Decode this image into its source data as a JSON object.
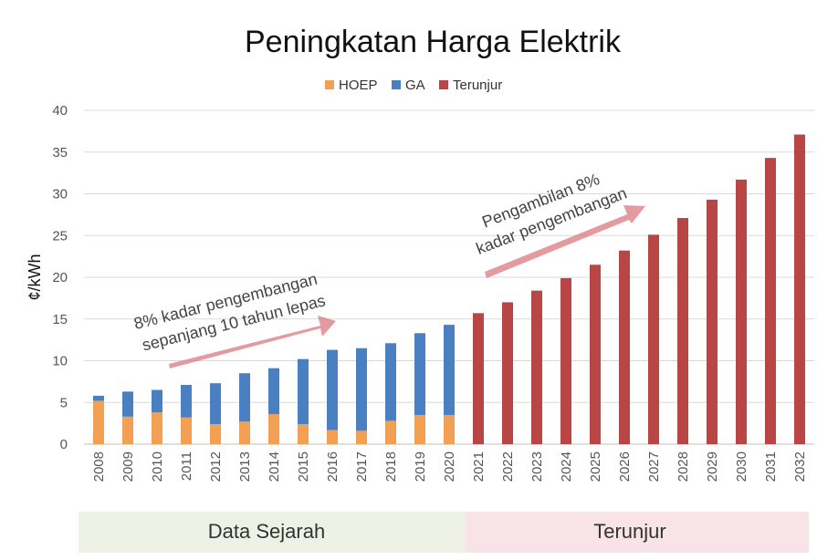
{
  "chart_data": {
    "type": "bar",
    "stacked": true,
    "title": "Peningkatan Harga Elektrik",
    "xlabel": "",
    "ylabel": "¢/kWh",
    "ylim": [
      0,
      40
    ],
    "yticks": [
      0,
      5,
      10,
      15,
      20,
      25,
      30,
      35,
      40
    ],
    "grid": true,
    "legend_position": "top",
    "categories": [
      "2008",
      "2009",
      "2010",
      "2011",
      "2012",
      "2013",
      "2014",
      "2015",
      "2016",
      "2017",
      "2018",
      "2019",
      "2020",
      "2021",
      "2022",
      "2023",
      "2024",
      "2025",
      "2026",
      "2027",
      "2028",
      "2029",
      "2030",
      "2031",
      "2032"
    ],
    "series": [
      {
        "name": "HOEP",
        "color": "#F4A054",
        "values": [
          5.2,
          3.3,
          3.8,
          3.2,
          2.4,
          2.7,
          3.6,
          2.4,
          1.7,
          1.6,
          2.8,
          3.5,
          3.5,
          null,
          null,
          null,
          null,
          null,
          null,
          null,
          null,
          null,
          null,
          null,
          null
        ]
      },
      {
        "name": "GA",
        "color": "#4A7FC1",
        "values": [
          0.6,
          3.0,
          2.7,
          3.9,
          4.9,
          5.8,
          5.5,
          7.8,
          9.6,
          9.9,
          9.3,
          9.8,
          10.8,
          null,
          null,
          null,
          null,
          null,
          null,
          null,
          null,
          null,
          null,
          null,
          null
        ]
      },
      {
        "name": "Terunjur",
        "color": "#B94545",
        "values": [
          null,
          null,
          null,
          null,
          null,
          null,
          null,
          null,
          null,
          null,
          null,
          null,
          null,
          15.7,
          17.0,
          18.4,
          19.9,
          21.5,
          23.2,
          25.1,
          27.1,
          29.3,
          31.7,
          34.3,
          37.1
        ]
      }
    ],
    "annotations": [
      {
        "lines": [
          "8% kadar pengembangan",
          "sepanjang 10 tahun lepas"
        ]
      },
      {
        "lines": [
          "Pengambilan 8%",
          "kadar pengembangan"
        ]
      }
    ],
    "bands": [
      {
        "label": "Data Sejarah",
        "color": "#EEF2E6"
      },
      {
        "label": "Terunjur",
        "color": "#F8E4E7"
      }
    ]
  }
}
